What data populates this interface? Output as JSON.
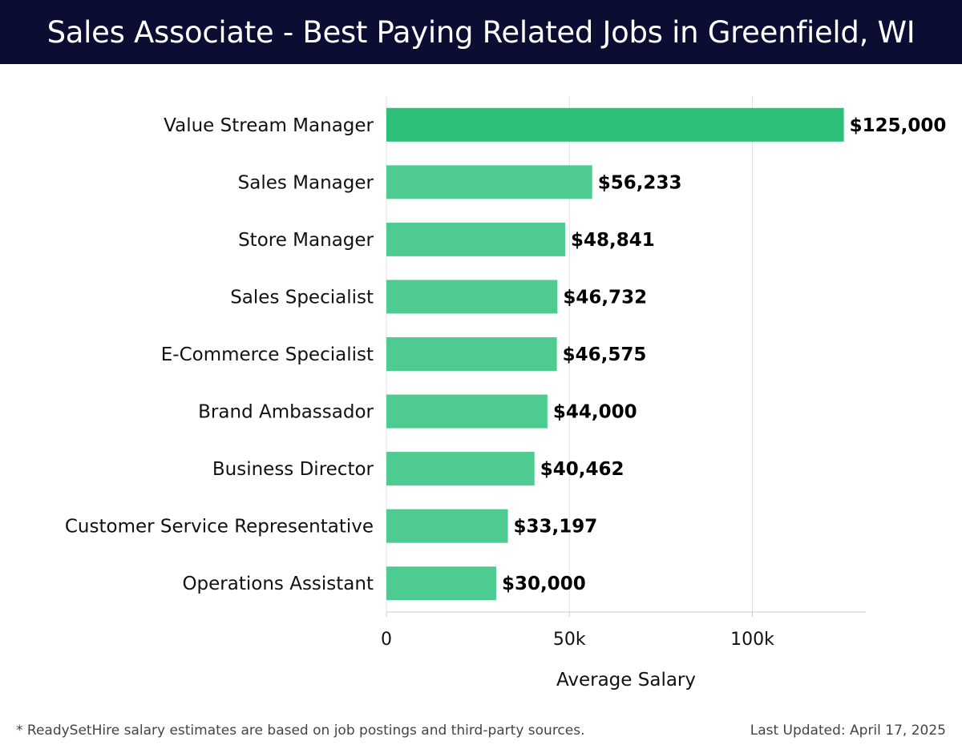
{
  "header": {
    "title": "Sales Associate - Best Paying Related Jobs in Greenfield, WI"
  },
  "chart_data": {
    "type": "bar",
    "orientation": "horizontal",
    "title": "Sales Associate - Best Paying Related Jobs in Greenfield, WI",
    "xlabel": "Average Salary",
    "ylabel": "",
    "xlim": [
      0,
      131000
    ],
    "x_ticks": [
      0,
      50000,
      100000
    ],
    "x_tick_labels": [
      "0",
      "50k",
      "100k"
    ],
    "grid": true,
    "categories": [
      "Value Stream Manager",
      "Sales Manager",
      "Store Manager",
      "Sales Specialist",
      "E-Commerce Specialist",
      "Brand Ambassador",
      "Business Director",
      "Customer Service Representative",
      "Operations Assistant"
    ],
    "values": [
      125000,
      56233,
      48841,
      46732,
      46575,
      44000,
      40462,
      33197,
      30000
    ],
    "value_labels": [
      "$125,000",
      "$56,233",
      "$48,841",
      "$46,732",
      "$46,575",
      "$44,000",
      "$40,462",
      "$33,197",
      "$30,000"
    ],
    "colors": {
      "top_bar": "#2bbf78",
      "bar": "#4ecb90",
      "grid": "#e2e2e2",
      "axis": "#cccccc"
    }
  },
  "footer": {
    "note": "* ReadySetHire salary estimates are based on job postings and third-party sources.",
    "updated": "Last Updated: April 17, 2025"
  }
}
